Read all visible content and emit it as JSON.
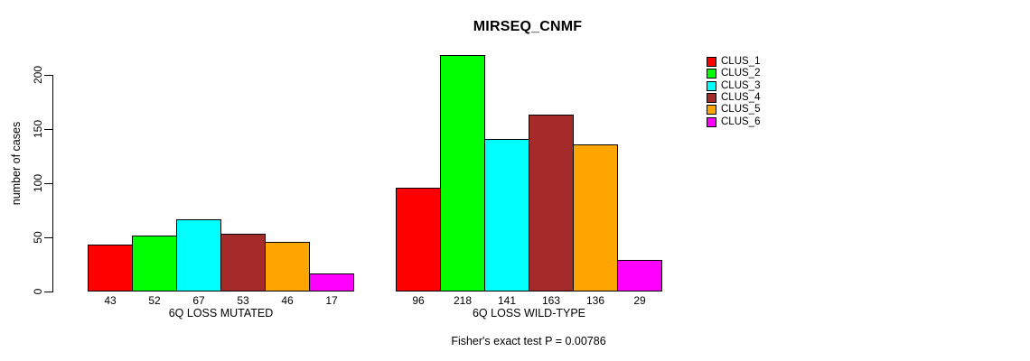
{
  "title": "MIRSEQ_CNMF",
  "chart_data": {
    "type": "bar",
    "title": "MIRSEQ_CNMF",
    "ylabel": "number of cases",
    "ylim": [
      0,
      200
    ],
    "yticks": [
      0,
      50,
      100,
      150,
      200
    ],
    "grid": false,
    "legend_position": "right-outside",
    "bar_value_labels": true,
    "groups": [
      {
        "label": "6Q LOSS MUTATED",
        "values": [
          43,
          52,
          67,
          53,
          46,
          17
        ]
      },
      {
        "label": "6Q LOSS WILD-TYPE",
        "values": [
          96,
          218,
          141,
          163,
          136,
          29
        ]
      }
    ],
    "series": [
      {
        "name": "CLUS_1",
        "color": "#FF0000"
      },
      {
        "name": "CLUS_2",
        "color": "#00FF00"
      },
      {
        "name": "CLUS_3",
        "color": "#00FFFF"
      },
      {
        "name": "CLUS_4",
        "color": "#A52A2A"
      },
      {
        "name": "CLUS_5",
        "color": "#FFA500"
      },
      {
        "name": "CLUS_6",
        "color": "#FF00FF"
      }
    ],
    "annotation": "Fisher's exact test P = 0.00786"
  }
}
